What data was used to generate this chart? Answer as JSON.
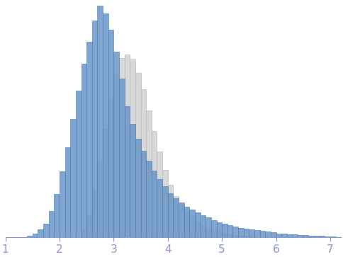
{
  "blue_hist_edges": [
    1.4,
    1.5,
    1.6,
    1.7,
    1.8,
    1.9,
    2.0,
    2.1,
    2.2,
    2.3,
    2.4,
    2.5,
    2.6,
    2.7,
    2.8,
    2.9,
    3.0,
    3.1,
    3.2,
    3.3,
    3.4,
    3.5,
    3.6,
    3.7,
    3.8,
    3.9,
    4.0,
    4.1,
    4.2,
    4.3,
    4.4,
    4.5,
    4.6,
    4.7,
    4.8,
    4.9,
    5.0,
    5.1,
    5.2,
    5.3,
    5.4,
    5.5,
    5.6,
    5.7,
    5.8,
    5.9,
    6.0,
    6.1,
    6.2,
    6.3,
    6.4,
    6.5,
    6.6,
    6.7,
    6.8,
    6.9,
    7.0
  ],
  "blue_hist_values": [
    2,
    5,
    10,
    18,
    35,
    58,
    88,
    120,
    158,
    196,
    232,
    262,
    290,
    310,
    300,
    278,
    248,
    212,
    175,
    152,
    132,
    116,
    102,
    89,
    78,
    68,
    59,
    52,
    46,
    41,
    37,
    33,
    29,
    26,
    23,
    20,
    18,
    16,
    14,
    12,
    11,
    10,
    9,
    8,
    7,
    6,
    5,
    5,
    4,
    4,
    3,
    3,
    2,
    2,
    2,
    1,
    1
  ],
  "gray_hist_edges": [
    2.4,
    2.5,
    2.6,
    2.7,
    2.8,
    2.9,
    3.0,
    3.1,
    3.2,
    3.3,
    3.4,
    3.5,
    3.6,
    3.7,
    3.8,
    3.9,
    4.0,
    4.1,
    4.2,
    4.3,
    4.4,
    4.5,
    4.6,
    4.7,
    4.8,
    4.9,
    5.0,
    5.1,
    5.2,
    5.3,
    5.4,
    5.5,
    5.6
  ],
  "gray_hist_values": [
    10,
    30,
    62,
    100,
    145,
    185,
    218,
    240,
    245,
    238,
    220,
    198,
    170,
    142,
    115,
    90,
    70,
    55,
    43,
    34,
    27,
    21,
    16,
    12,
    9,
    7,
    5,
    4,
    3,
    2,
    2,
    1,
    0
  ],
  "blue_color": "#6a96c8",
  "blue_edge_color": "#4d7ab5",
  "blue_alpha": 0.85,
  "gray_color": "#d8d8d8",
  "gray_edge_color": "#bbbbbb",
  "gray_alpha": 1.0,
  "xlim": [
    1.0,
    7.2
  ],
  "ylim": [
    0,
    315
  ],
  "xticks": [
    1,
    2,
    3,
    4,
    5,
    6,
    7
  ],
  "tick_color": "#8899cc",
  "spine_color": "#8899cc",
  "background_color": "#ffffff",
  "bin_width": 0.1,
  "tick_fontsize": 11
}
